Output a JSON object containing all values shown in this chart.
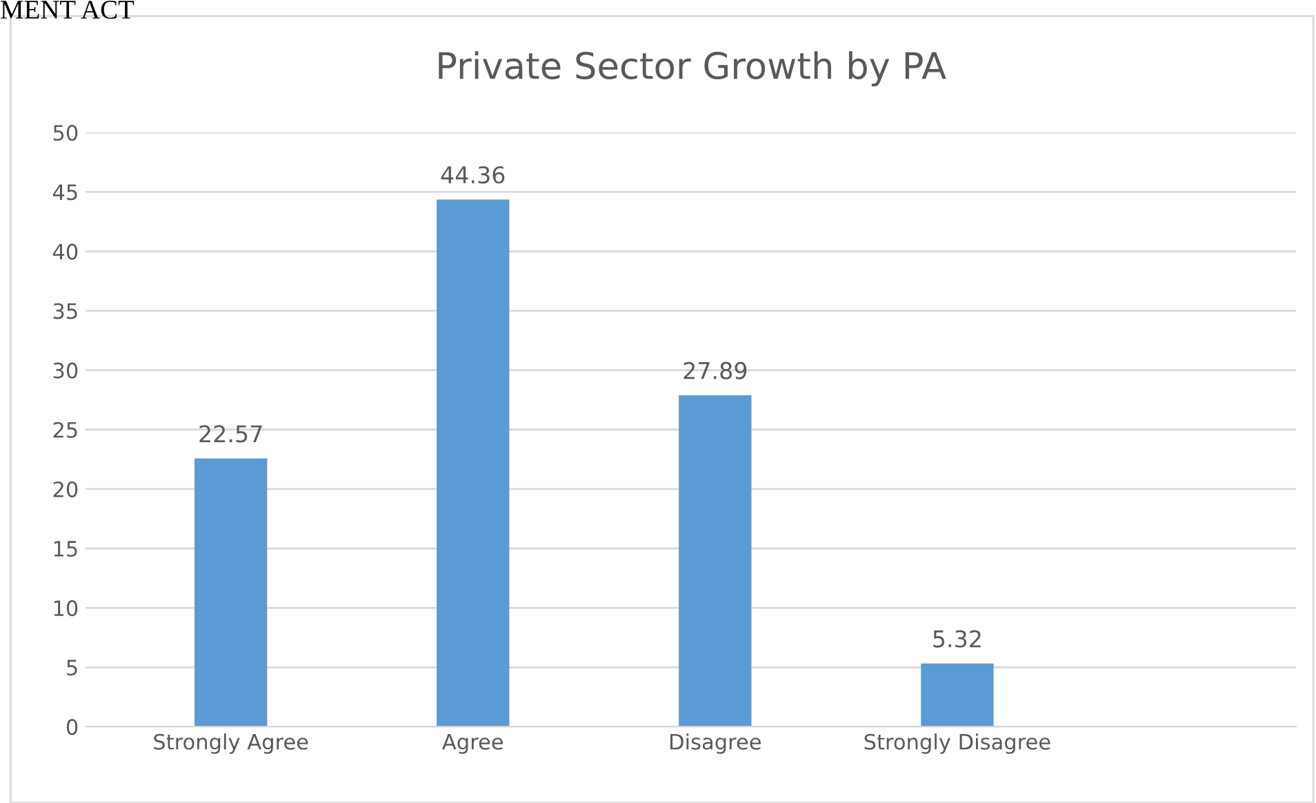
{
  "chart_data": {
    "type": "bar",
    "title": "Private Sector Growth by PA",
    "categories": [
      "Strongly Agree",
      "Agree",
      "Disagree",
      "Strongly Disagree"
    ],
    "values": [
      22.57,
      44.36,
      27.89,
      5.32
    ],
    "color": "#5b9bd5",
    "ylim": [
      0,
      50
    ],
    "yticks": [
      0,
      5,
      10,
      15,
      20,
      25,
      30,
      35,
      40,
      45,
      50
    ],
    "grid": "y",
    "data_labels": true,
    "annotations": [
      "MENT ACT"
    ]
  }
}
